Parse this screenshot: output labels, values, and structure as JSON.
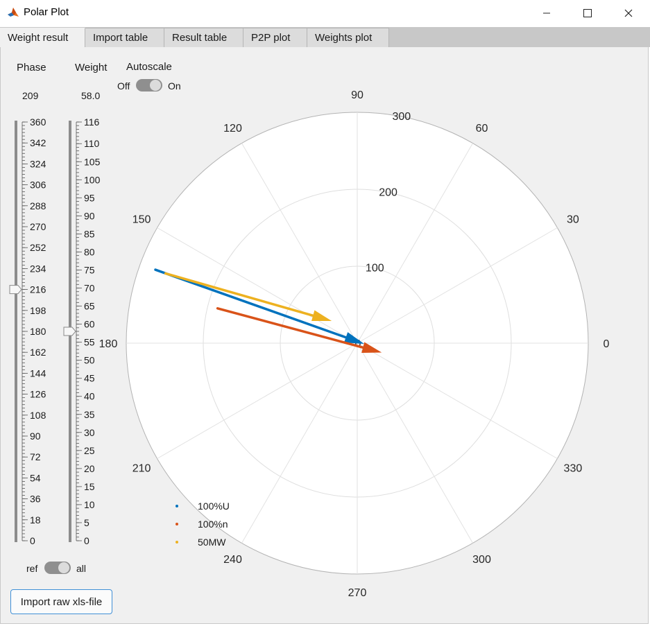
{
  "window": {
    "title": "Polar Plot",
    "icon": "matlab-icon"
  },
  "tabs": [
    {
      "label": "Weight result",
      "active": true
    },
    {
      "label": "Import table",
      "active": false
    },
    {
      "label": "Result table",
      "active": false
    },
    {
      "label": "P2P plot",
      "active": false
    },
    {
      "label": "Weights plot",
      "active": false
    }
  ],
  "controls": {
    "phase": {
      "label": "Phase",
      "value": "209",
      "min": 0,
      "max": 360,
      "slider_value": 216,
      "ticks": [
        "360",
        "342",
        "324",
        "306",
        "288",
        "270",
        "252",
        "234",
        "216",
        "198",
        "180",
        "162",
        "144",
        "126",
        "108",
        "90",
        "72",
        "54",
        "36",
        "18",
        "0"
      ]
    },
    "weight": {
      "label": "Weight",
      "value": "58.0",
      "min": 0,
      "max": 116,
      "slider_value": 58,
      "ticks": [
        "116",
        "110",
        "105",
        "100",
        "95",
        "90",
        "85",
        "80",
        "75",
        "70",
        "65",
        "60",
        "55",
        "50",
        "45",
        "40",
        "35",
        "30",
        "25",
        "20",
        "15",
        "10",
        "5",
        "0"
      ]
    },
    "autoscale": {
      "label": "Autoscale",
      "off_label": "Off",
      "on_label": "On",
      "state": "Off"
    },
    "ref_toggle": {
      "off_label": "ref",
      "on_label": "all",
      "state": "ref"
    },
    "import_button": "Import raw xls-file"
  },
  "chart_data": {
    "type": "polar",
    "rlim": [
      0,
      300
    ],
    "r_ticks": [
      "0",
      "100",
      "200",
      "300"
    ],
    "theta_ticks": [
      "0",
      "30",
      "60",
      "90",
      "120",
      "150",
      "180",
      "210",
      "240",
      "270",
      "300",
      "330"
    ],
    "grid": true,
    "legend_position": "bottom-left",
    "series": [
      {
        "name": "100%U",
        "color": "#0072bd",
        "start": {
          "theta": 160,
          "r": 279
        },
        "end": {
          "theta": 354,
          "r": 9
        }
      },
      {
        "name": "100%n",
        "color": "#d95319",
        "start": {
          "theta": 166,
          "r": 187
        },
        "end": {
          "theta": 339,
          "r": 34
        }
      },
      {
        "name": "50MW",
        "color": "#edb120",
        "start": {
          "theta": 160,
          "r": 265
        },
        "end": {
          "theta": 139,
          "r": 44
        }
      }
    ]
  }
}
